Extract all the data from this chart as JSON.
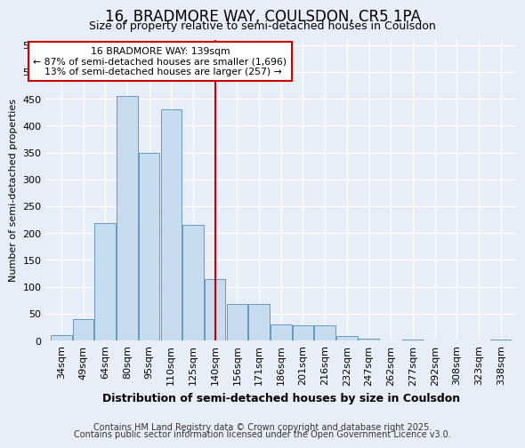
{
  "title1": "16, BRADMORE WAY, COULSDON, CR5 1PA",
  "title2": "Size of property relative to semi-detached houses in Coulsdon",
  "xlabel": "Distribution of semi-detached houses by size in Coulsdon",
  "ylabel": "Number of semi-detached properties",
  "categories": [
    "34sqm",
    "49sqm",
    "64sqm",
    "80sqm",
    "95sqm",
    "110sqm",
    "125sqm",
    "140sqm",
    "156sqm",
    "171sqm",
    "186sqm",
    "201sqm",
    "216sqm",
    "232sqm",
    "247sqm",
    "262sqm",
    "277sqm",
    "292sqm",
    "308sqm",
    "323sqm",
    "338sqm"
  ],
  "bar_values": [
    10,
    40,
    218,
    455,
    350,
    430,
    215,
    115,
    68,
    68,
    30,
    28,
    28,
    8,
    3,
    0,
    2,
    0,
    0,
    0,
    2
  ],
  "bar_color": "#c8dcf0",
  "bar_edge_color": "#6699bb",
  "marker_bin_index": 7,
  "marker_line_color": "#cc0000",
  "annotation_line1": "16 BRADMORE WAY: 139sqm",
  "annotation_line2": "← 87% of semi-detached houses are smaller (1,696)",
  "annotation_line3": "  13% of semi-detached houses are larger (257) →",
  "annotation_box_color": "#ffffff",
  "annotation_box_edge": "#cc0000",
  "ylim": [
    0,
    560
  ],
  "yticks": [
    0,
    50,
    100,
    150,
    200,
    250,
    300,
    350,
    400,
    450,
    500,
    550
  ],
  "footer1": "Contains HM Land Registry data © Crown copyright and database right 2025.",
  "footer2": "Contains public sector information licensed under the Open Government Licence v3.0.",
  "bg_color": "#e8eef8",
  "plot_bg_color": "#e8eef8",
  "grid_color": "#ffffff",
  "title1_fontsize": 12,
  "title2_fontsize": 9,
  "xlabel_fontsize": 9,
  "ylabel_fontsize": 8,
  "tick_fontsize": 8,
  "footer_fontsize": 7
}
